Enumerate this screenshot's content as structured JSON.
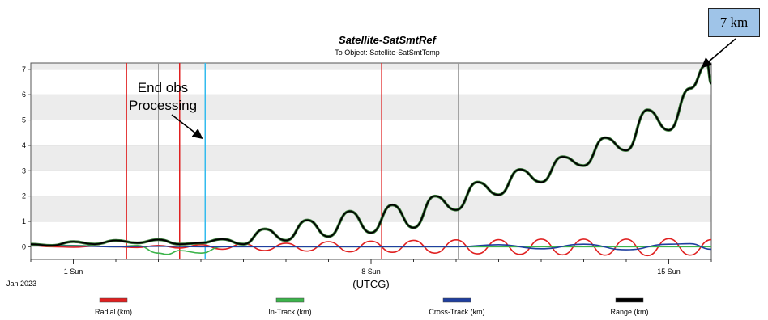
{
  "chart_data": {
    "type": "line",
    "title": "Satellite-SatSmtRef",
    "subtitle": "To Object: Satellite-SatSmtTemp",
    "xlabel": "(UTCG)",
    "x_period_label": "Jan 2023",
    "x_ticks": [
      {
        "day": 1,
        "label": "1 Sun"
      },
      {
        "day": 8,
        "label": "8 Sun"
      },
      {
        "day": 15,
        "label": "15 Sun"
      }
    ],
    "xlim_days": [
      0.0,
      16.0
    ],
    "ylim": [
      -0.5,
      7.25
    ],
    "y_ticks": [
      0,
      1,
      2,
      3,
      4,
      5,
      6,
      7
    ],
    "grid": "horizontal bands",
    "legend_position": "bottom",
    "vertical_markers": [
      {
        "day": 2.25,
        "color": "#e02020"
      },
      {
        "day": 3.0,
        "color": "#999999"
      },
      {
        "day": 3.5,
        "color": "#e02020"
      },
      {
        "day": 4.1,
        "color": "#33bbee"
      },
      {
        "day": 8.25,
        "color": "#e02020"
      },
      {
        "day": 10.05,
        "color": "#999999"
      }
    ],
    "series": [
      {
        "name": "Radial (km)",
        "color": "#e02020",
        "x": [
          0.0,
          0.5,
          1.0,
          1.5,
          2.0,
          2.5,
          3.0,
          3.5,
          4.0,
          4.5,
          5.0,
          5.5,
          6.0,
          6.5,
          7.0,
          7.5,
          8.0,
          8.5,
          9.0,
          9.5,
          10.0,
          10.5,
          11.0,
          11.5,
          12.0,
          12.5,
          13.0,
          13.5,
          14.0,
          14.5,
          15.0,
          15.5,
          16.0
        ],
        "y": [
          0.05,
          0.0,
          -0.02,
          0.02,
          0.0,
          -0.03,
          0.05,
          -0.05,
          0.08,
          -0.1,
          0.12,
          -0.15,
          0.14,
          -0.17,
          0.2,
          -0.2,
          0.22,
          -0.22,
          0.25,
          -0.25,
          0.27,
          -0.28,
          0.28,
          -0.3,
          0.3,
          -0.32,
          0.3,
          -0.33,
          0.3,
          -0.35,
          0.32,
          -0.33,
          0.28
        ]
      },
      {
        "name": "In-Track (km)",
        "color": "#3cb44b",
        "x": [
          0.0,
          1.0,
          2.0,
          2.5,
          3.0,
          3.2,
          3.5,
          4.0,
          4.5,
          5.0,
          6.0,
          8.0,
          10.0,
          12.0,
          14.0,
          16.0
        ],
        "y": [
          0.08,
          0.05,
          0.0,
          0.05,
          -0.25,
          -0.3,
          -0.15,
          -0.25,
          0.0,
          0.02,
          0.0,
          0.0,
          0.0,
          0.0,
          0.0,
          0.0
        ]
      },
      {
        "name": "Cross-Track (km)",
        "color": "#1f3f9f",
        "x": [
          0.0,
          1.0,
          2.0,
          3.0,
          4.0,
          5.0,
          6.0,
          7.0,
          8.0,
          9.0,
          10.0,
          11.0,
          12.0,
          13.0,
          14.0,
          15.0,
          15.5,
          16.0
        ],
        "y": [
          0.05,
          0.03,
          0.0,
          0.02,
          0.0,
          0.0,
          0.0,
          0.0,
          0.0,
          0.0,
          0.0,
          0.08,
          -0.08,
          0.1,
          -0.12,
          0.1,
          0.12,
          -0.1
        ]
      },
      {
        "name": "Range (km)",
        "color": "#000000",
        "x": [
          0.0,
          0.5,
          1.0,
          1.5,
          2.0,
          2.5,
          3.0,
          3.5,
          4.0,
          4.5,
          5.0,
          5.5,
          6.0,
          6.5,
          7.0,
          7.5,
          8.0,
          8.5,
          9.0,
          9.5,
          10.0,
          10.5,
          11.0,
          11.5,
          12.0,
          12.5,
          13.0,
          13.5,
          14.0,
          14.5,
          15.0,
          15.5,
          15.9,
          16.0
        ],
        "y": [
          0.1,
          0.05,
          0.2,
          0.1,
          0.25,
          0.15,
          0.28,
          0.1,
          0.15,
          0.3,
          0.1,
          0.7,
          0.25,
          1.05,
          0.4,
          1.4,
          0.55,
          1.65,
          0.75,
          2.0,
          1.45,
          2.55,
          2.05,
          3.05,
          2.55,
          3.55,
          3.2,
          4.3,
          3.8,
          5.4,
          4.6,
          6.25,
          7.2,
          6.45
        ]
      }
    ],
    "annotations": {
      "peak_label": "7 km",
      "end_obs_label": "End obs Processing"
    }
  }
}
